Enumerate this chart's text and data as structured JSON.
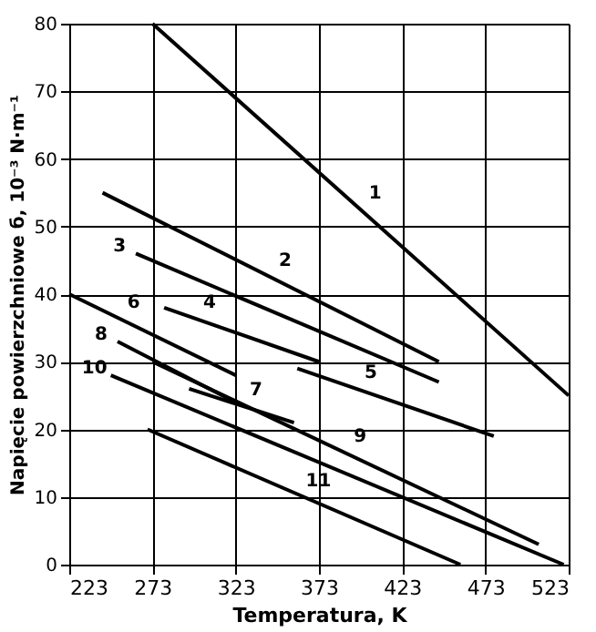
{
  "chart_data": {
    "type": "line",
    "xlabel": "Temperatura, K",
    "ylabel": "Napięcie powierzchniowe б, 10⁻³ N·m⁻¹",
    "xlim": [
      223,
      523
    ],
    "xticks": [
      223,
      273,
      323,
      373,
      423,
      473,
      523
    ],
    "ylim": [
      0,
      80
    ],
    "yticks": [
      0,
      10,
      20,
      30,
      40,
      50,
      60,
      70,
      80
    ],
    "grid": true,
    "legend": false,
    "marker": "none",
    "line_style": "solid",
    "series": [
      {
        "name": "1",
        "color": "#000000",
        "x": [
          273,
          523
        ],
        "values": [
          80,
          25
        ]
      },
      {
        "name": "2",
        "color": "#000000",
        "x": [
          243,
          445
        ],
        "values": [
          55,
          30
        ]
      },
      {
        "name": "3",
        "color": "#000000",
        "x": [
          263,
          445
        ],
        "values": [
          46,
          27
        ]
      },
      {
        "name": "4",
        "color": "#000000",
        "x": [
          280,
          373
        ],
        "values": [
          38,
          30
        ]
      },
      {
        "name": "5",
        "color": "#000000",
        "x": [
          360,
          478
        ],
        "values": [
          29,
          19
        ]
      },
      {
        "name": "6",
        "color": "#000000",
        "x": [
          223,
          323
        ],
        "values": [
          40,
          28
        ]
      },
      {
        "name": "7",
        "color": "#000000",
        "x": [
          295,
          358
        ],
        "values": [
          26,
          21
        ]
      },
      {
        "name": "8",
        "color": "#000000",
        "x": [
          252,
          323
        ],
        "values": [
          33,
          24
        ]
      },
      {
        "name": "9",
        "color": "#000000",
        "x": [
          273,
          505
        ],
        "values": [
          30,
          3
        ]
      },
      {
        "name": "10",
        "color": "#000000",
        "x": [
          248,
          520
        ],
        "values": [
          28,
          0
        ]
      },
      {
        "name": "11",
        "color": "#000000",
        "x": [
          270,
          458
        ],
        "values": [
          20,
          0
        ]
      }
    ]
  }
}
